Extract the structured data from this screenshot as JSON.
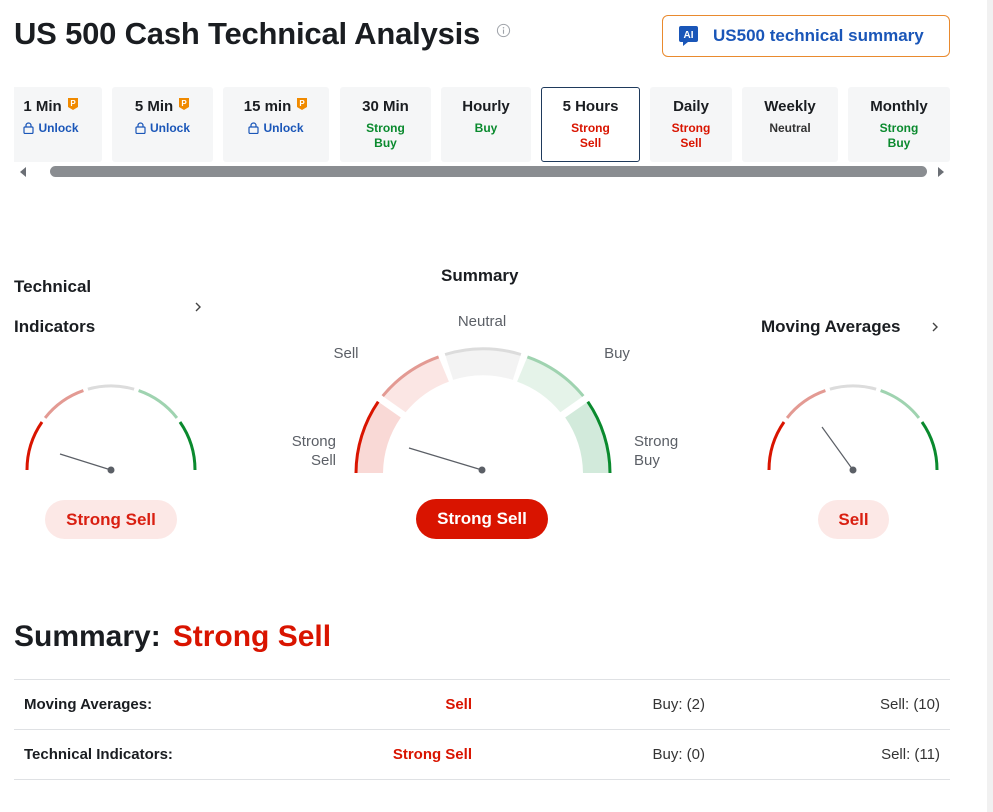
{
  "page": {
    "title": "US 500 Cash Technical Analysis",
    "info_icon": "info-circle-icon"
  },
  "ai_button": {
    "badge": "AI",
    "label": "US500 technical summary"
  },
  "tabs": [
    {
      "label": "1 Min",
      "locked": true,
      "status": "Unlock"
    },
    {
      "label": "5 Min",
      "locked": true,
      "status": "Unlock"
    },
    {
      "label": "15 min",
      "locked": true,
      "status": "Unlock"
    },
    {
      "label": "30 Min",
      "status": "Strong\nBuy",
      "color": "#0a8a2e"
    },
    {
      "label": "Hourly",
      "status": "Buy",
      "color": "#0a8a2e"
    },
    {
      "label": "5 Hours",
      "status": "Strong\nSell",
      "color": "#d91400",
      "active": true
    },
    {
      "label": "Daily",
      "status": "Strong\nSell",
      "color": "#d91400"
    },
    {
      "label": "Weekly",
      "status": "Neutral",
      "color": "#333333"
    },
    {
      "label": "Monthly",
      "status": "Strong\nBuy",
      "color": "#0a8a2e"
    }
  ],
  "technical_indicators": {
    "label_line1": "Technical",
    "label_line2": "Indicators",
    "result": "Strong Sell"
  },
  "summary_gauge": {
    "title": "Summary",
    "labels": {
      "strong_sell": "Strong\nSell",
      "sell": "Sell",
      "neutral": "Neutral",
      "buy": "Buy",
      "strong_buy": "Strong\nBuy"
    },
    "result": "Strong Sell"
  },
  "moving_averages": {
    "label": "Moving Averages",
    "result": "Sell"
  },
  "summary": {
    "label": "Summary:",
    "value": "Strong Sell",
    "rows": [
      {
        "name": "Moving Averages:",
        "signal": "Sell",
        "buy": "Buy: (2)",
        "sell": "Sell: (10)"
      },
      {
        "name": "Technical Indicators:",
        "signal": "Strong Sell",
        "buy": "Buy: (0)",
        "sell": "Sell: (11)"
      }
    ]
  },
  "colors": {
    "strong_sell": "#d91400",
    "sell": "#e39a93",
    "neutral": "#dcdcdc",
    "buy": "#9fd3b0",
    "strong_buy": "#0a8a2e",
    "link": "#1a56b8",
    "pro_badge": "#f08a00"
  }
}
